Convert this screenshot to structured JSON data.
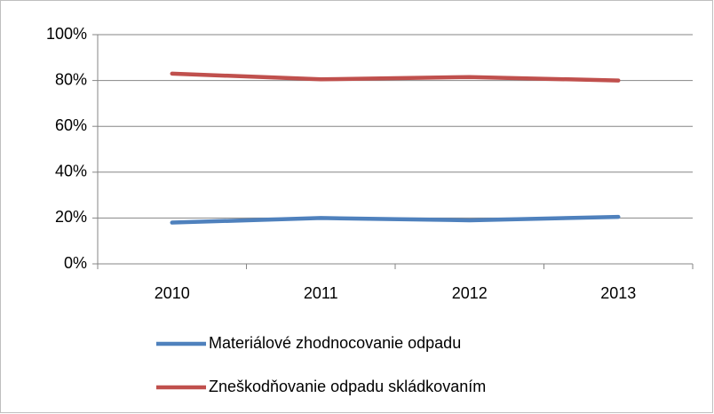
{
  "chart_data": {
    "type": "line",
    "categories": [
      "2010",
      "2011",
      "2012",
      "2013"
    ],
    "series": [
      {
        "name": "Materiálové zhodnocovanie odpadu",
        "color": "#4f81bd",
        "values": [
          18,
          20,
          19,
          20.5
        ]
      },
      {
        "name": "Zneškodňovanie odpadu skládkovaním",
        "color": "#c0504d",
        "values": [
          83,
          80.5,
          81.5,
          80
        ]
      }
    ],
    "ylim": [
      0,
      100
    ],
    "yticks": [
      {
        "value": 0,
        "label": "0%"
      },
      {
        "value": 20,
        "label": "20%"
      },
      {
        "value": 40,
        "label": "40%"
      },
      {
        "value": 60,
        "label": "60%"
      },
      {
        "value": 80,
        "label": "80%"
      },
      {
        "value": 100,
        "label": "100%"
      }
    ],
    "grid": true
  }
}
